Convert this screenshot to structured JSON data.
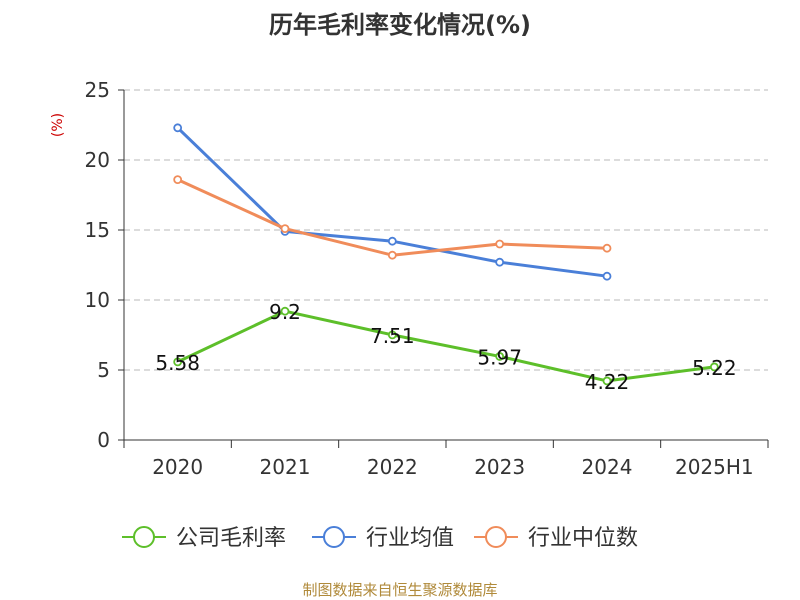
{
  "chart_data": {
    "type": "line",
    "title": "历年毛利率变化情况(%)",
    "ylabel": "(%)",
    "categories": [
      "2020",
      "2021",
      "2022",
      "2023",
      "2024",
      "2025H1"
    ],
    "ylim": [
      0,
      25
    ],
    "yticks": [
      0,
      5,
      10,
      15,
      20,
      25
    ],
    "grid": true,
    "legend_position": "bottom",
    "series": [
      {
        "name": "公司毛利率",
        "color": "#5dbf2a",
        "values": [
          5.58,
          9.2,
          7.51,
          5.97,
          4.22,
          5.22
        ],
        "labels": [
          "5.58",
          "9.2",
          "7.51",
          "5.97",
          "4.22",
          "5.22"
        ]
      },
      {
        "name": "行业均值",
        "color": "#4a7fd8",
        "values": [
          22.3,
          14.9,
          14.2,
          12.7,
          11.7,
          null
        ]
      },
      {
        "name": "行业中位数",
        "color": "#f08c5a",
        "values": [
          18.6,
          15.1,
          13.2,
          14.0,
          13.7,
          null
        ]
      }
    ]
  },
  "source": "制图数据来自恒生聚源数据库"
}
